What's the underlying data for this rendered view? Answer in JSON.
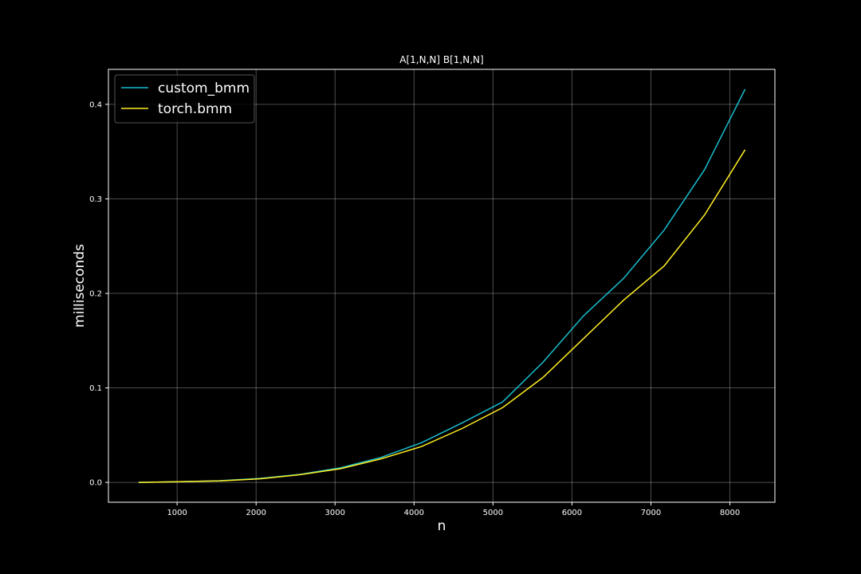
{
  "chart_data": {
    "type": "line",
    "title": "A[1,N,N] B[1,N,N]",
    "xlabel": "n",
    "ylabel": "milliseconds",
    "xlim": [
      130,
      8570
    ],
    "ylim": [
      -0.021,
      0.437
    ],
    "xticks": [
      1000,
      2000,
      3000,
      4000,
      5000,
      6000,
      7000,
      8000
    ],
    "yticks": [
      0.0,
      0.1,
      0.2,
      0.3,
      0.4
    ],
    "xtick_labels": [
      "1000",
      "2000",
      "3000",
      "4000",
      "5000",
      "6000",
      "7000",
      "8000"
    ],
    "ytick_labels": [
      "0.0",
      "0.1",
      "0.2",
      "0.3",
      "0.4"
    ],
    "grid": true,
    "legend_position": "top-left",
    "x": [
      512,
      1024,
      1536,
      2048,
      2560,
      3072,
      3584,
      4096,
      4608,
      5120,
      5632,
      6144,
      6656,
      7168,
      7680,
      8192
    ],
    "series": [
      {
        "name": "custom_bmm",
        "color": "#17becf",
        "values": [
          0.0,
          0.0008,
          0.0018,
          0.0042,
          0.0085,
          0.0155,
          0.0265,
          0.042,
          0.063,
          0.085,
          0.127,
          0.176,
          0.216,
          0.267,
          0.331,
          0.416
        ]
      },
      {
        "name": "torch.bmm",
        "color": "#ffee22",
        "values": [
          0.0,
          0.0007,
          0.0016,
          0.0038,
          0.0082,
          0.0145,
          0.025,
          0.038,
          0.057,
          0.079,
          0.111,
          0.152,
          0.193,
          0.229,
          0.283,
          0.352
        ]
      }
    ]
  }
}
